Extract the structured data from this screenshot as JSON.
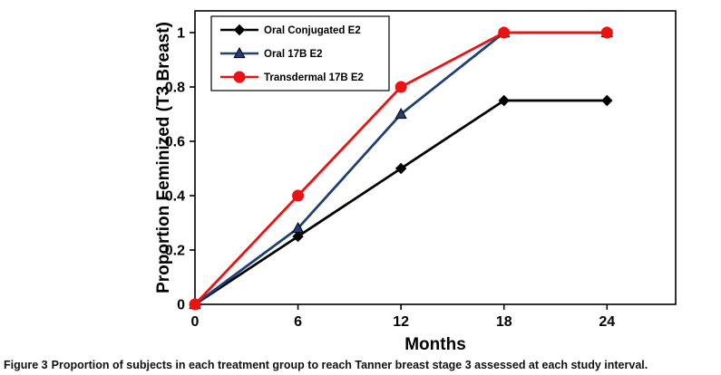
{
  "caption": {
    "label": "Figure 3",
    "text": "Proportion of subjects in each treatment group to reach Tanner breast stage 3 assessed at each study interval."
  },
  "chart_data": {
    "type": "line",
    "title": "",
    "xlabel": "Months",
    "ylabel": "Proportion Feminized (T3 Breast)",
    "x": [
      0,
      6,
      12,
      18,
      24
    ],
    "xticks": [
      0,
      6,
      12,
      18,
      24
    ],
    "yticks": [
      0,
      0.2,
      0.4,
      0.6,
      0.8,
      1
    ],
    "xlim": [
      0,
      28
    ],
    "ylim": [
      0,
      1.08
    ],
    "grid": false,
    "legend_position": "top-left",
    "series": [
      {
        "name": "Oral Conjugated E2",
        "color": "#000000",
        "marker": "diamond",
        "values": [
          0,
          0.25,
          0.5,
          0.75,
          0.75
        ]
      },
      {
        "name": "Oral 17B E2",
        "color": "#1f3f77",
        "marker": "triangle",
        "values": [
          0,
          0.28,
          0.7,
          1,
          1
        ]
      },
      {
        "name": "Transdermal 17B E2",
        "color": "#ee1111",
        "marker": "circle",
        "values": [
          0,
          0.4,
          0.8,
          1,
          1
        ]
      }
    ]
  }
}
